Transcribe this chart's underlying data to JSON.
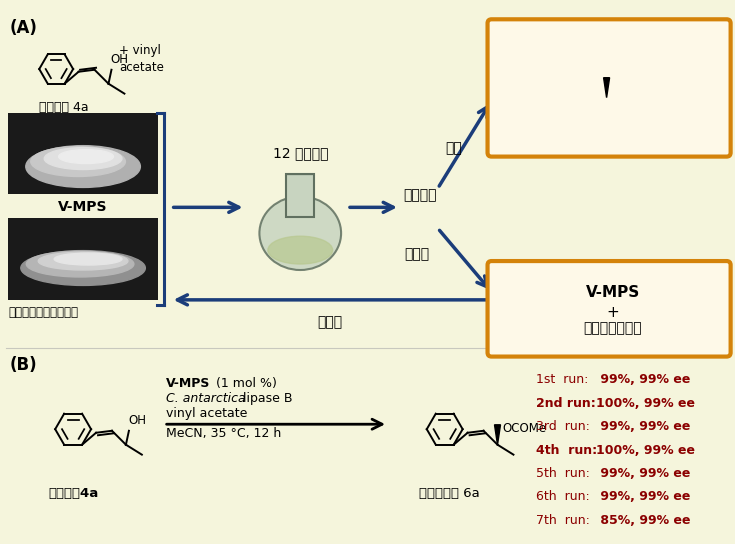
{
  "bg_color": "#F5F5DC",
  "panel_a_label": "(A)",
  "panel_b_label": "(B)",
  "arrow_color": "#1B3D7A",
  "orange_box_color": "#D4830A",
  "dark_red_color": "#8B0000",
  "run_lines": [
    {
      "label": "1st  run:",
      "value": " 99%, 99% ee",
      "bold_val": false
    },
    {
      "label": "2nd run:",
      "value": "100%, 99% ee",
      "bold_val": true
    },
    {
      "label": "3rd  run:",
      "value": " 99%, 99% ee",
      "bold_val": false
    },
    {
      "label": "4th  run:",
      "value": "100%, 99% ee",
      "bold_val": true
    },
    {
      "label": "5th  run:",
      "value": " 99%, 99% ee",
      "bold_val": false
    },
    {
      "label": "6th  run:",
      "value": " 99%, 99% ee",
      "bold_val": false
    },
    {
      "label": "7th  run:",
      "value": " 85%, 99% ee",
      "bold_val": false
    }
  ],
  "text_12h": "12 時間撹拌",
  "text_solution": "溶液",
  "text_centrifuge": "遠心分離",
  "text_precipitate": "沈殿物",
  "text_reuse": "再利用",
  "text_vmps_bold": "V-MPS",
  "text_racemic_a": "ラセミ体 4a",
  "text_commercial": "市販の固定化リパーゼ",
  "text_optical_6a": "光学活性体 6a",
  "text_vmps_plus": "V-MPS\n+\n固定化リパーゼ",
  "text_b_racemic": "ラセミ体4a",
  "text_b_optical": "光学活性体 6a"
}
